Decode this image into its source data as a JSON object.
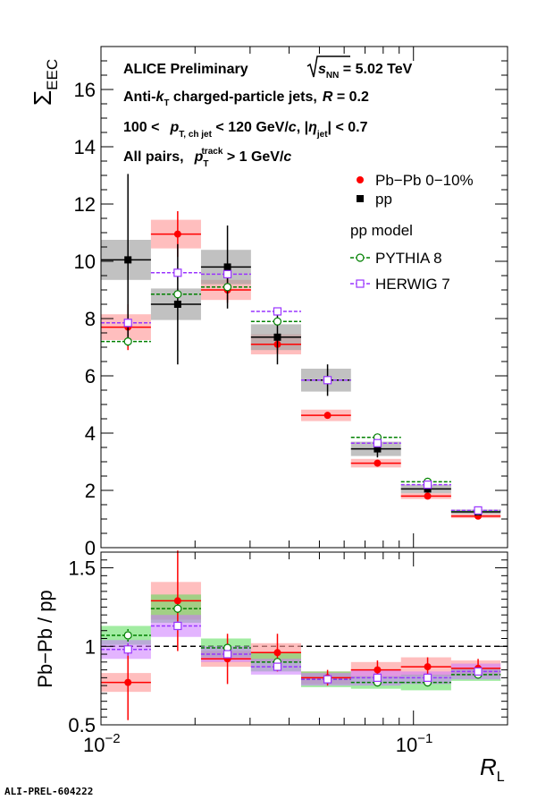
{
  "chart_data": [
    {
      "type": "scatter",
      "panel": "top",
      "ylabel": "Σ_EEC",
      "ylim": [
        0,
        17.5
      ],
      "xlim": [
        0.01,
        0.2
      ],
      "xscale": "log",
      "yticks": [
        0,
        2,
        4,
        6,
        8,
        10,
        12,
        14,
        16
      ],
      "annotations": {
        "line1a": "ALICE Preliminary",
        "line1b_s": "s",
        "line1b_sub": "NN",
        "line1b_rest": " = 5.02 TeV",
        "line2a": "Anti-",
        "line2b": "k",
        "line2c": "T",
        "line2d": " charged-particle jets,",
        "line2e": "R",
        "line2f": " = 0.2",
        "line3a": "100 <",
        "line3b": "p",
        "line3c": "T, ch jet",
        "line3d": " < 120 GeV/",
        "line3e": "c",
        "line3f": ", |",
        "line3g": "η",
        "line3h": "jet",
        "line3i": "| < 0.7",
        "line4a": "All pairs,",
        "line4b": "p",
        "line4c": "T",
        "line4d": "track",
        "line4e": " > 1 GeV/",
        "line4f": "c"
      },
      "legend": {
        "pbpb": "Pb−Pb 0−10%",
        "pp": "pp",
        "model_header": "pp model",
        "pythia": "PYTHIA 8",
        "herwig": "HERWIG 7"
      },
      "bins": [
        [
          0.01,
          0.01445
        ],
        [
          0.01445,
          0.0209
        ],
        [
          0.0209,
          0.0302
        ],
        [
          0.0302,
          0.0437
        ],
        [
          0.0437,
          0.0631
        ],
        [
          0.0631,
          0.0912
        ],
        [
          0.0912,
          0.132
        ],
        [
          0.132,
          0.19
        ]
      ],
      "x_centers": [
        0.0122,
        0.0176,
        0.0254,
        0.0367,
        0.0531,
        0.0767,
        0.111,
        0.161
      ],
      "series": [
        {
          "name": "Pb−Pb 0−10%",
          "color": "#ff0000",
          "values": [
            7.7,
            10.95,
            9.0,
            7.1,
            4.62,
            2.95,
            1.8,
            1.1
          ],
          "stat_err": [
            0.8,
            0.8,
            0.45,
            0.3,
            0.08,
            0.06,
            0.04,
            0.03
          ],
          "sys_err": [
            0.45,
            0.5,
            0.35,
            0.35,
            0.2,
            0.15,
            0.1,
            0.07
          ]
        },
        {
          "name": "pp",
          "color": "#000000",
          "values": [
            10.05,
            8.5,
            9.8,
            7.35,
            5.85,
            3.45,
            2.05,
            1.25
          ],
          "stat_err": [
            3.0,
            2.1,
            1.45,
            0.95,
            0.55,
            0.3,
            0.12,
            0.06
          ],
          "sys_err": [
            0.7,
            0.55,
            0.6,
            0.45,
            0.4,
            0.25,
            0.15,
            0.08
          ]
        },
        {
          "name": "PYTHIA 8",
          "color": "#008000",
          "values": [
            7.2,
            8.85,
            9.1,
            7.9,
            5.85,
            3.85,
            2.3,
            1.28
          ],
          "stat_err": [
            0.15,
            0.1,
            0.1,
            0.1,
            0.08,
            0.06,
            0.04,
            0.03
          ]
        },
        {
          "name": "HERWIG 7",
          "color": "#9933ff",
          "values": [
            7.85,
            9.6,
            9.55,
            8.25,
            5.85,
            3.65,
            2.2,
            1.3
          ],
          "stat_err": [
            0.15,
            0.1,
            0.1,
            0.1,
            0.08,
            0.06,
            0.04,
            0.03
          ]
        }
      ]
    },
    {
      "type": "scatter",
      "panel": "ratio",
      "ylabel": "Pb−Pb / pp",
      "xlabel": "R_L",
      "xlabel_main": "R",
      "xlabel_sub": "L",
      "ylim": [
        0.5,
        1.6
      ],
      "xlim": [
        0.01,
        0.2
      ],
      "xscale": "log",
      "yticks": [
        0.5,
        1,
        1.5
      ],
      "xticks_major": [
        {
          "value": 0.01,
          "base": "10",
          "exp": "−2"
        },
        {
          "value": 0.1,
          "base": "10",
          "exp": "−1"
        }
      ],
      "reference_line": 1.0,
      "bins": [
        [
          0.01,
          0.01445
        ],
        [
          0.01445,
          0.0209
        ],
        [
          0.0209,
          0.0302
        ],
        [
          0.0302,
          0.0437
        ],
        [
          0.0437,
          0.0631
        ],
        [
          0.0631,
          0.0912
        ],
        [
          0.0912,
          0.132
        ],
        [
          0.132,
          0.19
        ]
      ],
      "x_centers": [
        0.0122,
        0.0176,
        0.0254,
        0.0367,
        0.0531,
        0.0767,
        0.111,
        0.161
      ],
      "series": [
        {
          "name": "Pb−Pb 0−10%",
          "color": "#ff0000",
          "values": [
            0.77,
            1.29,
            0.92,
            0.96,
            0.8,
            0.85,
            0.87,
            0.86
          ],
          "stat_err": [
            0.24,
            0.32,
            0.16,
            0.12,
            0.05,
            0.06,
            0.06,
            0.06
          ],
          "sys_err": [
            0.06,
            0.12,
            0.05,
            0.06,
            0.04,
            0.05,
            0.06,
            0.05
          ]
        },
        {
          "name": "PYTHIA 8",
          "color": "#008000",
          "values": [
            1.07,
            1.24,
            0.99,
            0.9,
            0.79,
            0.77,
            0.77,
            0.82
          ],
          "stat_err": [
            0.04,
            0.03,
            0.02,
            0.02,
            0.01,
            0.01,
            0.01,
            0.01
          ],
          "sys_err": [
            0.06,
            0.09,
            0.06,
            0.06,
            0.05,
            0.04,
            0.05,
            0.04
          ]
        },
        {
          "name": "HERWIG 7",
          "color": "#9933ff",
          "values": [
            0.98,
            1.13,
            0.95,
            0.87,
            0.79,
            0.8,
            0.8,
            0.84
          ],
          "stat_err": [
            0.04,
            0.03,
            0.02,
            0.02,
            0.01,
            0.01,
            0.01,
            0.01
          ],
          "sys_err": [
            0.06,
            0.07,
            0.05,
            0.05,
            0.04,
            0.05,
            0.04,
            0.05
          ]
        }
      ]
    }
  ],
  "footer": {
    "tag": "ALI-PREL-604222"
  }
}
